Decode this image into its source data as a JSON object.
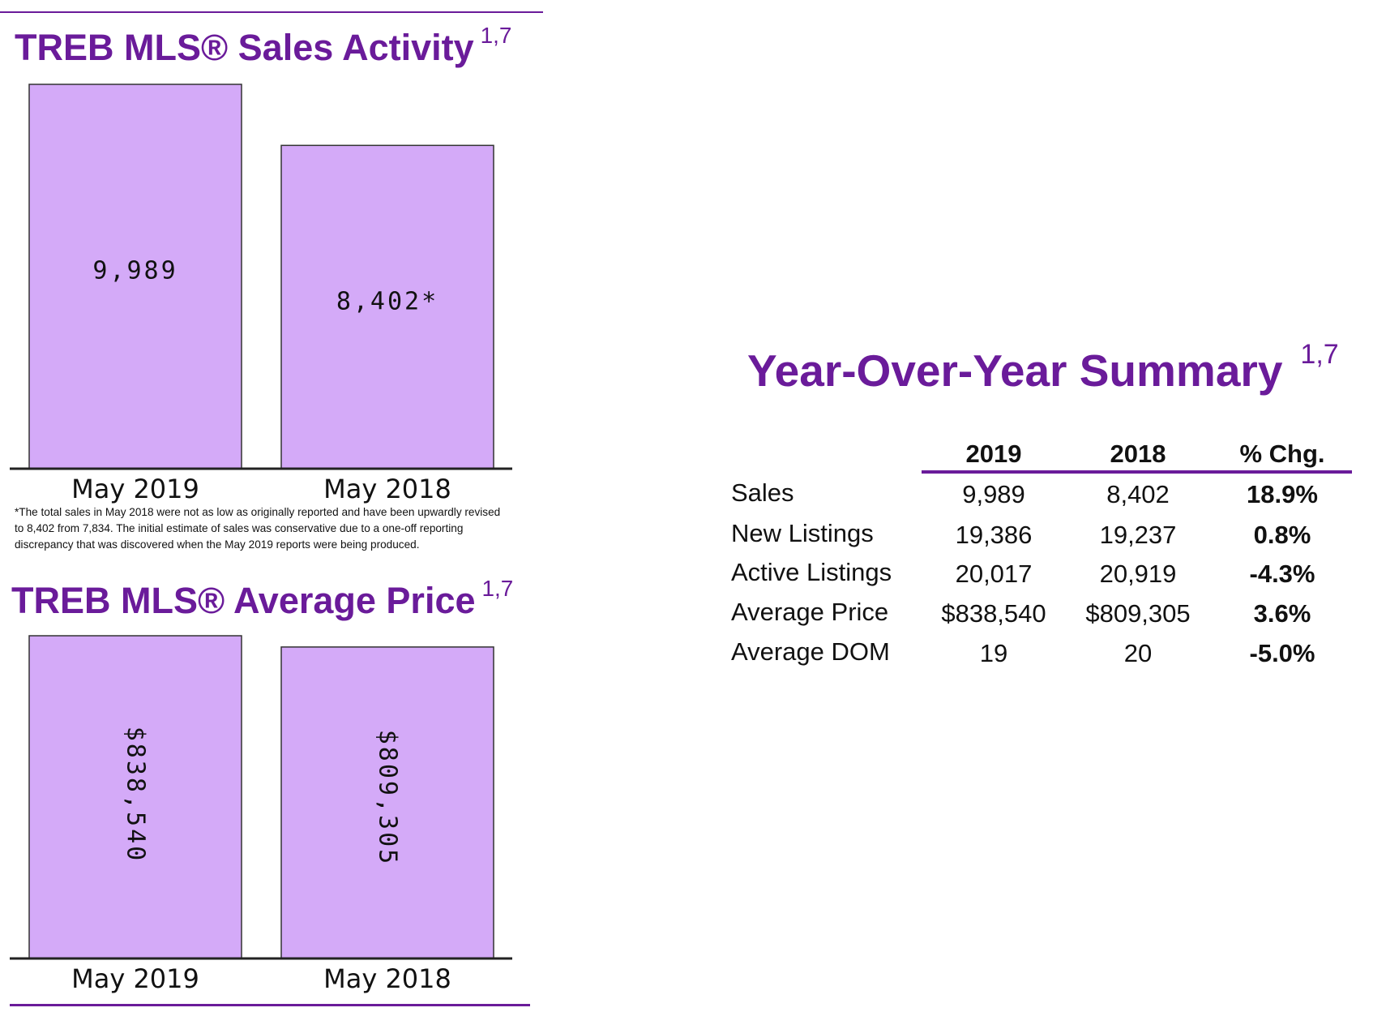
{
  "colors": {
    "accent": "#6a1b9a",
    "bar_fill": "#d4aaf8",
    "bar_stroke": "#333333"
  },
  "chart_data": [
    {
      "type": "bar",
      "title": "TREB MLS® Sales Activity",
      "title_superscript": "1,7",
      "categories": [
        "May 2019",
        "May 2018"
      ],
      "values": [
        9989,
        8402
      ],
      "data_labels": [
        "9,989",
        "8,402*"
      ],
      "label_orientation": "horizontal",
      "ylim": [
        0,
        9989
      ],
      "grid": false,
      "footnote": "*The total sales in May 2018 were not as low as originally reported and have been upwardly revised to 8,402 from 7,834.  The initial estimate of sales was conservative due to a one-off reporting discrepancy that was discovered when the May 2019 reports were being produced."
    },
    {
      "type": "bar",
      "title": "TREB MLS® Average Price",
      "title_superscript": "1,7",
      "categories": [
        "May 2019",
        "May 2018"
      ],
      "values": [
        838540,
        809305
      ],
      "data_labels": [
        "$838,540",
        "$809,305"
      ],
      "label_orientation": "vertical",
      "ylim": [
        0,
        838540
      ],
      "grid": false
    },
    {
      "type": "table",
      "title": "Year-Over-Year Summary",
      "title_superscript": "1,7",
      "columns": [
        "2019",
        "2018",
        "% Chg."
      ],
      "rows": [
        {
          "label": "Sales",
          "values": [
            "9,989",
            "8,402",
            "18.9%"
          ]
        },
        {
          "label": "New Listings",
          "values": [
            "19,386",
            "19,237",
            "0.8%"
          ]
        },
        {
          "label": "Active Listings",
          "values": [
            "20,017",
            "20,919",
            "-4.3%"
          ]
        },
        {
          "label": "Average Price",
          "values": [
            "$838,540",
            "$809,305",
            "3.6%"
          ]
        },
        {
          "label": "Average DOM",
          "values": [
            "19",
            "20",
            "-5.0%"
          ]
        }
      ]
    }
  ]
}
